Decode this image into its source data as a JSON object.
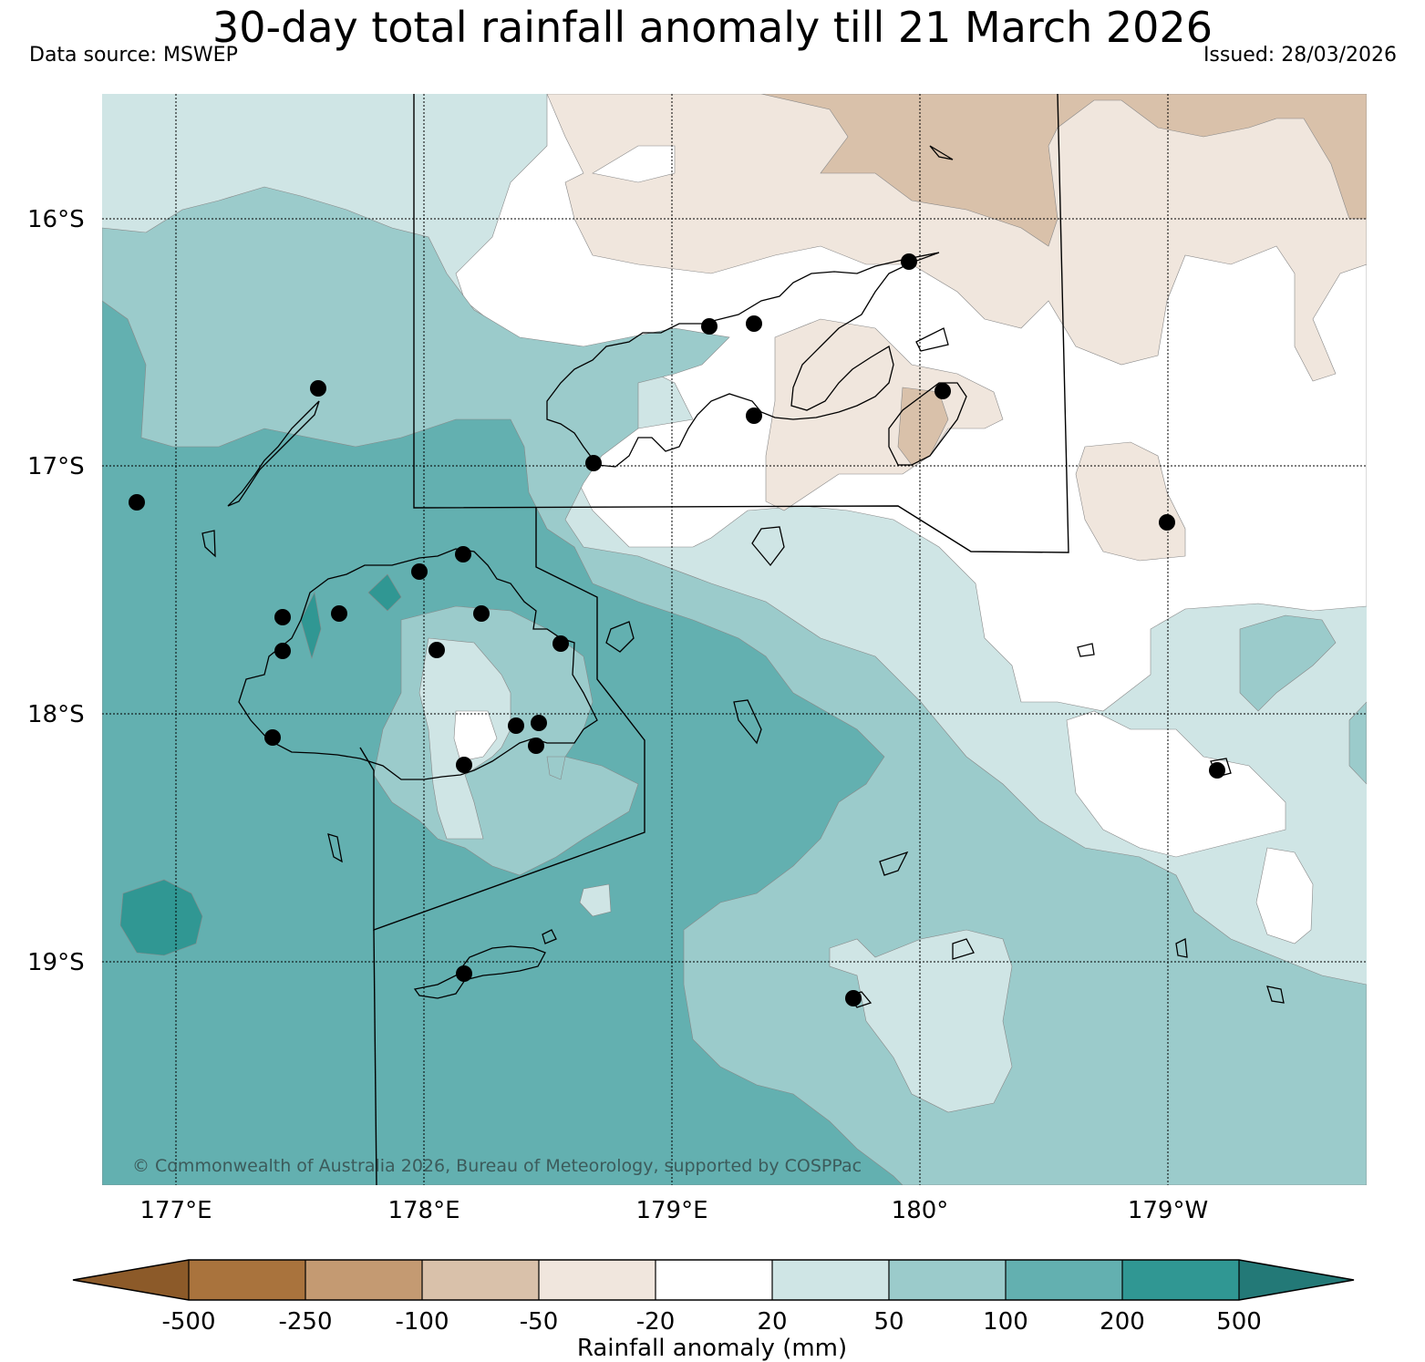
{
  "header": {
    "title": "30-day total rainfall anomaly till 21 March 2026",
    "data_source": "Data source: MSWEP",
    "issued": "Issued: 28/03/2026"
  },
  "map": {
    "lat_labels": [
      "16°S",
      "17°S",
      "18°S",
      "19°S"
    ],
    "lon_labels": [
      "177°E",
      "178°E",
      "179°E",
      "180°",
      "179°W"
    ],
    "copyright": "© Commonwealth of Australia 2026, Bureau of Meteorology, supported by COSPPac"
  },
  "colorbar": {
    "title": "Rainfall anomaly (mm)",
    "ticks": [
      "-500",
      "-250",
      "-100",
      "-50",
      "-20",
      "20",
      "50",
      "100",
      "200",
      "500"
    ],
    "colors": [
      "#8c5a29",
      "#a9733d",
      "#c49a72",
      "#d9c1aa",
      "#f0e6dd",
      "#ffffff",
      "#cfe5e5",
      "#9bcbcb",
      "#63b0b0",
      "#309793",
      "#237977"
    ]
  }
}
